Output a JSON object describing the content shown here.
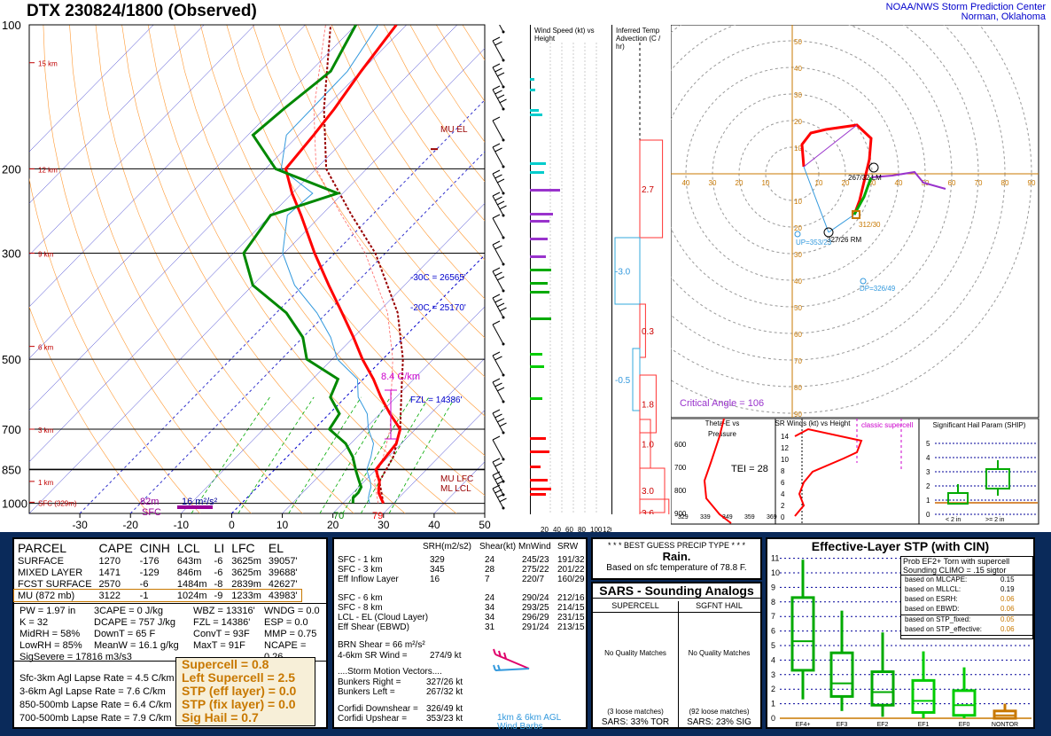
{
  "header": {
    "title": "DTX   230824/1800  (Observed)",
    "credit_line1": "NOAA/NWS Storm Prediction Center",
    "credit_line2": "Norman, Oklahoma"
  },
  "chart_data": [
    {
      "type": "line",
      "title": "Skew-T Log-P",
      "pressure_ticks": [
        "100",
        "200",
        "300",
        "500",
        "700",
        "850",
        "1000"
      ],
      "temperature_ticks": [
        "-30",
        "-20",
        "-10",
        "0",
        "10",
        "20",
        "30",
        "40",
        "50"
      ],
      "height_labels": [
        "15 km",
        "12 km",
        "9 km",
        "6 km",
        "3 km",
        "1 km",
        "SFC (329m)"
      ],
      "temperature_profile": {
        "name": "Temperature",
        "color": "#ff0000",
        "p": [
          1000,
          975,
          950,
          925,
          900,
          875,
          850,
          800,
          750,
          700,
          650,
          600,
          550,
          500,
          450,
          400,
          350,
          300,
          250,
          225,
          200,
          170,
          150,
          125,
          100
        ],
        "t": [
          28,
          26.5,
          25,
          24,
          23,
          21.5,
          20,
          19.5,
          19,
          17,
          12,
          7,
          2,
          -4,
          -10,
          -17,
          -25,
          -34,
          -44,
          -50,
          -56,
          -57,
          -58,
          -60,
          -62
        ]
      },
      "dewpoint_profile": {
        "name": "Dewpoint",
        "color": "#008800",
        "p": [
          1000,
          975,
          950,
          925,
          900,
          875,
          850,
          800,
          750,
          700,
          650,
          600,
          550,
          500,
          450,
          400,
          350,
          300,
          250,
          225,
          200,
          170,
          150,
          125,
          100
        ],
        "td": [
          22,
          21,
          21,
          20.5,
          19,
          17.5,
          16,
          13,
          9,
          3,
          2,
          -3,
          -5,
          -15,
          -20,
          -28,
          -40,
          -48,
          -50,
          -41,
          -58,
          -69,
          -68,
          -66,
          -70
        ]
      },
      "annotations": [
        "MU EL",
        "-30C = 26565'",
        "-20C = 25170'",
        "FZL = 14386'",
        "8.4 C/km",
        "MU LFC",
        "ML LCL",
        "70",
        "79",
        "82m",
        "16 m²/s²",
        "SFC"
      ]
    },
    {
      "type": "bar",
      "title": "Wind Speed (kt) vs Height",
      "x_ticks": [
        "20",
        "40",
        "60",
        "80",
        "100",
        "120"
      ]
    },
    {
      "type": "bar",
      "title": "Inferred Temp Advection (C / hr)",
      "values": [
        2.7,
        -3.0,
        0.3,
        -0.5,
        1.8,
        1.0,
        3.0,
        3.6
      ],
      "labels": [
        "2.7",
        "-3.0",
        "0.3",
        "-0.5",
        "1.8",
        "1.0",
        "3.0",
        "3.6"
      ]
    },
    {
      "type": "line",
      "title": "Hodograph",
      "ring_labels": [
        "10",
        "20",
        "30",
        "40",
        "50",
        "60",
        "70",
        "80",
        "90"
      ],
      "axis_labels": [
        "40",
        "30",
        "20",
        "10",
        "10",
        "20",
        "30",
        "40",
        "50",
        "60",
        "70",
        "80",
        "90"
      ],
      "annotations": [
        "267/32 LM",
        "327/26 RM",
        "UP=353/23",
        "DP=326/49",
        "312/30",
        "Critical Angle = 106"
      ],
      "points": [
        {
          "u": -2,
          "v": 2
        },
        {
          "u": -3,
          "v": 7
        },
        {
          "u": 2,
          "v": 5
        },
        {
          "u": 14,
          "v": -4
        },
        {
          "u": 17,
          "v": -8
        },
        {
          "u": 14,
          "v": -8
        },
        {
          "u": 14,
          "v": -11
        },
        {
          "u": 27,
          "v": -18
        },
        {
          "u": 30,
          "v": -13
        },
        {
          "u": 32,
          "v": -8
        }
      ]
    },
    {
      "type": "line",
      "title": "Theta-E vs Pressure",
      "x_ticks": [
        "329",
        "339",
        "349",
        "359",
        "369"
      ],
      "y_ticks": [
        "600",
        "700",
        "800",
        "900"
      ],
      "annotations": [
        "TEI = 28"
      ]
    },
    {
      "type": "line",
      "title": "SR Winds (kt) vs Height",
      "y_ticks": [
        "0",
        "2",
        "4",
        "6",
        "8",
        "10",
        "12",
        "14"
      ],
      "annotations": [
        "classic supercell"
      ]
    },
    {
      "type": "bar",
      "title": "Significant Hail Param (SHIP)",
      "y_ticks": [
        "0",
        "1",
        "2",
        "3",
        "4",
        "5"
      ],
      "categories": [
        "< 2 in",
        ">= 2 in"
      ]
    },
    {
      "type": "bar",
      "title": "Effective-Layer STP (with CIN)",
      "categories": [
        "EF4+",
        "EF3",
        "EF2",
        "EF1",
        "EF0",
        "NONTOR"
      ],
      "y_ticks": [
        "0",
        "1",
        "2",
        "3",
        "4",
        "5",
        "6",
        "7",
        "8",
        "9",
        "10",
        "11"
      ],
      "box_stats": [
        {
          "name": "EF4+",
          "lo": 1.3,
          "q1": 3.3,
          "med": 5.3,
          "q3": 8.3,
          "hi": 10.9
        },
        {
          "name": "EF3",
          "lo": 0.5,
          "q1": 1.5,
          "med": 2.4,
          "q3": 4.5,
          "hi": 7.4
        },
        {
          "name": "EF2",
          "lo": 0.1,
          "q1": 0.9,
          "med": 1.8,
          "q3": 3.2,
          "hi": 5.9
        },
        {
          "name": "EF1",
          "lo": 0.0,
          "q1": 0.4,
          "med": 1.2,
          "q3": 2.6,
          "hi": 4.6
        },
        {
          "name": "EF0",
          "lo": 0.0,
          "q1": 0.2,
          "med": 0.9,
          "q3": 1.9,
          "hi": 3.5
        },
        {
          "name": "NONTOR",
          "lo": 0.0,
          "q1": 0.0,
          "med": 0.2,
          "q3": 0.5,
          "hi": 1.0
        }
      ]
    }
  ],
  "parcel_table": {
    "headers": [
      "PARCEL",
      "CAPE",
      "CINH",
      "LCL",
      "LI",
      "LFC",
      "EL"
    ],
    "rows": [
      [
        "SURFACE",
        "1270",
        "-176",
        "643m",
        "-6",
        "3625m",
        "39057'"
      ],
      [
        "MIXED LAYER",
        "1471",
        "-129",
        "846m",
        "-6",
        "3625m",
        "39688'"
      ],
      [
        "FCST SURFACE",
        "2570",
        "-6",
        "1484m",
        "-8",
        "2839m",
        "42627'"
      ],
      [
        "MU  (872 mb)",
        "3122",
        "-1",
        "1024m",
        "-9",
        "1233m",
        "43983'"
      ]
    ]
  },
  "thermo": {
    "c1": [
      "PW = 1.97 in",
      "K = 32",
      "MidRH = 58%",
      "LowRH = 85%",
      "SigSevere = 17816 m3/s3"
    ],
    "c2": [
      "3CAPE = 0 J/kg",
      "DCAPE = 757 J/kg",
      "DownT = 65 F",
      "MeanW = 16.1 g/kg"
    ],
    "c3": [
      "WBZ = 13316'",
      "FZL = 14386'",
      "ConvT = 93F",
      "MaxT = 91F"
    ],
    "c4": [
      "WNDG = 0.0",
      "ESP = 0.0",
      "MMP = 0.75",
      "NCAPE = 0.26"
    ],
    "lapse": [
      "Sfc-3km Agl Lapse Rate =   4.5 C/km",
      "3-6km Agl Lapse Rate =   7.6 C/km",
      "850-500mb Lapse Rate =   6.4 C/km",
      "700-500mb Lapse Rate =   7.9 C/km"
    ],
    "params": [
      "Supercell = 0.8",
      "Left Supercell = 2.5",
      "STP (eff layer) = 0.0",
      "STP (fix layer) = 0.0",
      "Sig Hail = 0.7"
    ]
  },
  "kinematics": {
    "headers": [
      "SRH(m2/s2)",
      "Shear(kt)",
      "MnWind",
      "SRW"
    ],
    "rows": [
      [
        "SFC - 1 km",
        "329",
        "24",
        "245/23",
        "191/32"
      ],
      [
        "SFC - 3 km",
        "345",
        "28",
        "275/22",
        "201/22"
      ],
      [
        "Eff Inflow Layer",
        "16",
        "7",
        "220/7",
        "160/29"
      ],
      [
        "SFC - 6 km",
        "",
        "24",
        "290/24",
        "212/16"
      ],
      [
        "SFC - 8 km",
        "",
        "34",
        "293/25",
        "214/15"
      ],
      [
        "LCL - EL (Cloud Layer)",
        "",
        "34",
        "296/29",
        "231/15"
      ],
      [
        "Eff Shear (EBWD)",
        "",
        "31",
        "291/24",
        "213/15"
      ]
    ],
    "brn": "BRN Shear = 66 m²/s²",
    "sr46": "4-6km SR Wind =",
    "sr46_val": "274/9 kt",
    "motion_title": "....Storm Motion Vectors....",
    "motion": [
      [
        "Bunkers Right =",
        "327/26 kt"
      ],
      [
        "Bunkers Left =",
        "267/32 kt"
      ],
      [
        "Corfidi Downshear =",
        "326/49 kt"
      ],
      [
        "Corfidi Upshear =",
        "353/23 kt"
      ]
    ],
    "barb_note1": "1km & 6km AGL",
    "barb_note2": "Wind Barbs"
  },
  "precip": {
    "title": "* * * BEST GUESS PRECIP TYPE * * *",
    "type": "Rain.",
    "note": "Based on sfc temperature of 78.8 F."
  },
  "sars": {
    "title": "SARS - Sounding Analogs",
    "col1": "SUPERCELL",
    "col2": "SGFNT HAIL",
    "nq1": "No Quality Matches",
    "nq2": "No Quality Matches",
    "loose1": "(3 loose matches)",
    "loose2": "(92 loose matches)",
    "pct1": "SARS:  33% TOR",
    "pct2": "SARS:  23% SIG"
  },
  "stp": {
    "title": "Effective-Layer STP (with CIN)",
    "prob_title1": "Prob EF2+ Torn with supercell",
    "prob_title2": "Sounding CLIMO = .15 sigtor",
    "rows": [
      [
        "based on MLCAPE:",
        "0.15"
      ],
      [
        "based on MLLCL:",
        "0.19"
      ],
      [
        "based on ESRH:",
        "0.06"
      ],
      [
        "based on EBWD:",
        "0.06"
      ],
      [
        "based on STP_fixed:",
        "0.05"
      ],
      [
        "based on STP_effective:",
        "0.06"
      ]
    ]
  },
  "colors": {
    "temperature": "#ff0000",
    "dewpoint": "#008800",
    "background_panel": "#0a2a5a",
    "accent": "#c87800"
  }
}
